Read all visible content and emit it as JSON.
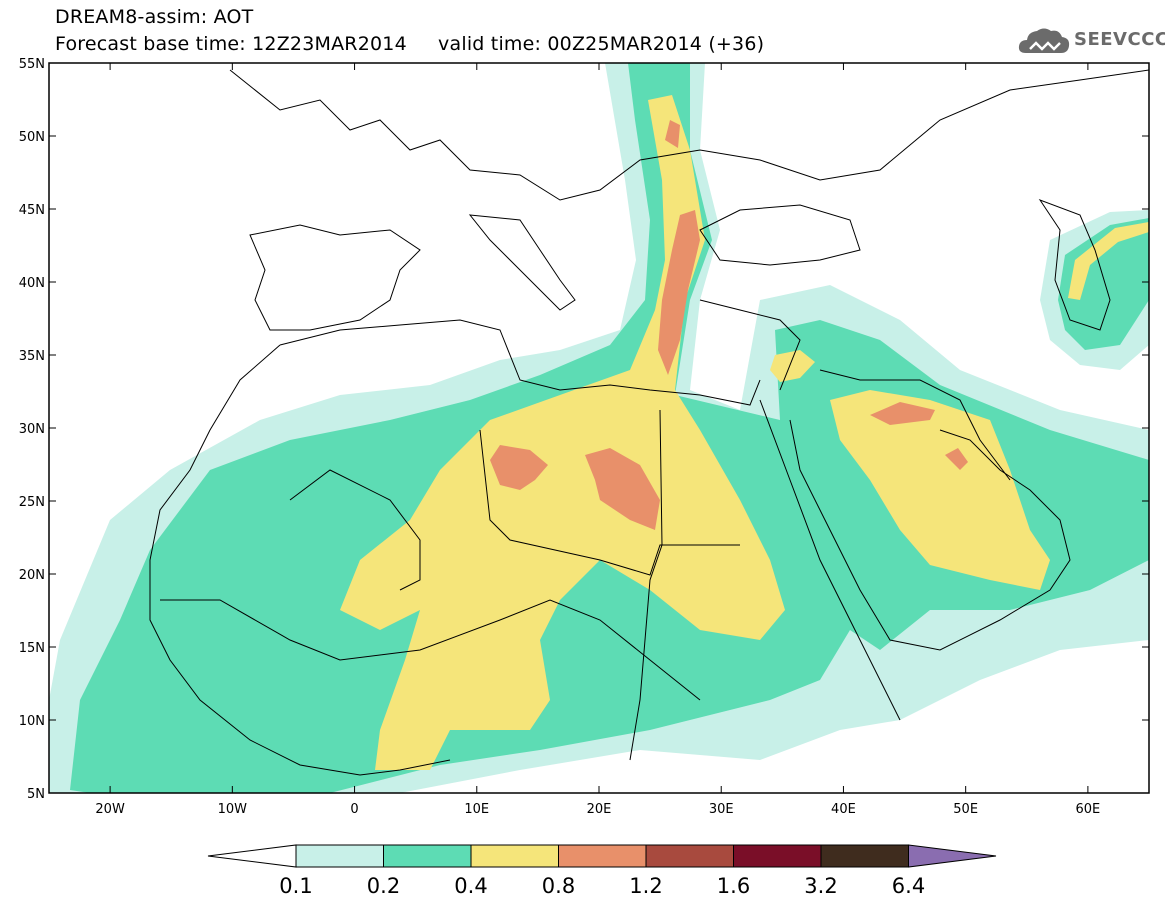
{
  "header": {
    "line1": "DREAM8-assim: AOT",
    "line2": "Forecast base time: 12Z23MAR2014     valid time: 00Z25MAR2014 (+36)"
  },
  "logo": {
    "text": "SEEVCCC",
    "icon": "cloud-icon"
  },
  "map": {
    "lat_labels": [
      "55N",
      "50N",
      "45N",
      "40N",
      "35N",
      "30N",
      "25N",
      "20N",
      "15N",
      "10N",
      "5N"
    ],
    "lat_values": [
      55,
      50,
      45,
      40,
      35,
      30,
      25,
      20,
      15,
      10,
      5
    ],
    "lon_labels": [
      "20W",
      "10W",
      "0",
      "10E",
      "20E",
      "30E",
      "40E",
      "50E",
      "60E"
    ],
    "lon_values": [
      -20,
      -10,
      0,
      10,
      20,
      30,
      40,
      50,
      60
    ],
    "extent": {
      "lon_min": -25,
      "lon_max": 65,
      "lat_min": 5,
      "lat_max": 55
    }
  },
  "colorbar": {
    "labels": [
      "0.1",
      "0.2",
      "0.4",
      "0.8",
      "1.2",
      "1.6",
      "3.2",
      "6.4"
    ],
    "colors": [
      "#ffffff",
      "#c8f0e8",
      "#5ddcb4",
      "#f5e57a",
      "#e8906a",
      "#a84a3e",
      "#7a0e28",
      "#3f2c1e",
      "#8a6db0"
    ]
  },
  "colors": {
    "c1": "#c8f0e8",
    "c2": "#5ddcb4",
    "c3": "#f5e57a",
    "c4": "#e8906a",
    "c5": "#a84a3e"
  }
}
